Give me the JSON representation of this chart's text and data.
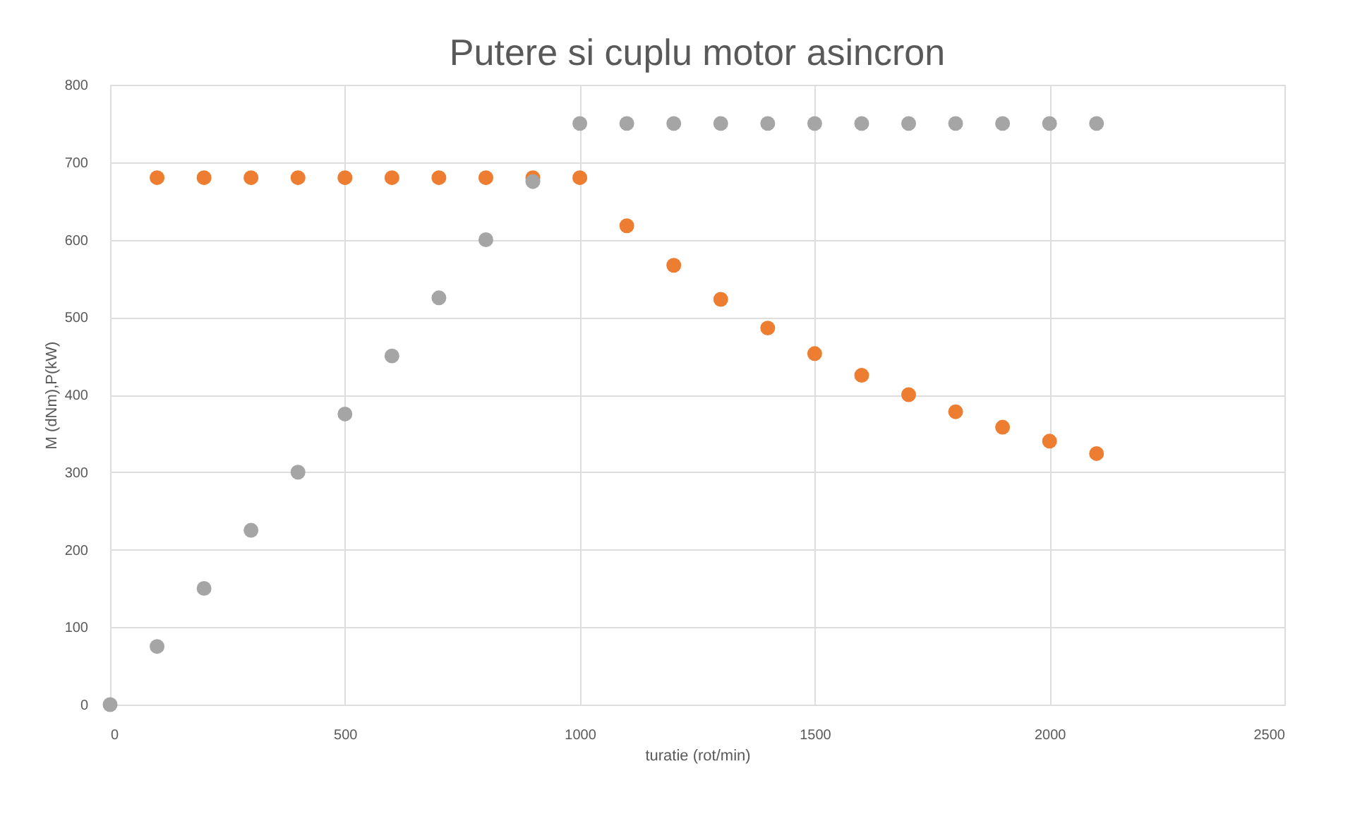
{
  "chart_data": {
    "type": "scatter",
    "title": "Putere si cuplu motor asincron",
    "xlabel": "turatie (rot/min)",
    "ylabel": "M (dNm),P(kW)",
    "xlim": [
      0,
      2500
    ],
    "xticks": [
      0,
      500,
      1000,
      1500,
      2000,
      2500
    ],
    "ylim": [
      0,
      800
    ],
    "yticks": [
      0,
      100,
      200,
      300,
      400,
      500,
      600,
      700,
      800
    ],
    "grid": true,
    "marker": "circle",
    "series": [
      {
        "color": "#a5a5a5",
        "x": [
          0,
          100,
          200,
          300,
          400,
          500,
          600,
          700,
          800,
          900,
          1000,
          1100,
          1200,
          1300,
          1400,
          1500,
          1600,
          1700,
          1800,
          1900,
          2000,
          2100
        ],
        "values": [
          0,
          75,
          150,
          225,
          300,
          375,
          450,
          525,
          600,
          675,
          750,
          750,
          750,
          750,
          750,
          750,
          750,
          750,
          750,
          750,
          750,
          750
        ]
      },
      {
        "color": "#ed7d31",
        "x": [
          100,
          200,
          300,
          400,
          500,
          600,
          700,
          800,
          900,
          1000,
          1100,
          1200,
          1300,
          1400,
          1500,
          1600,
          1700,
          1800,
          1900,
          2000,
          2100
        ],
        "values": [
          680,
          680,
          680,
          680,
          680,
          680,
          680,
          680,
          680,
          680,
          618,
          567,
          523,
          486,
          453,
          425,
          400,
          378,
          358,
          340,
          324
        ]
      }
    ]
  }
}
